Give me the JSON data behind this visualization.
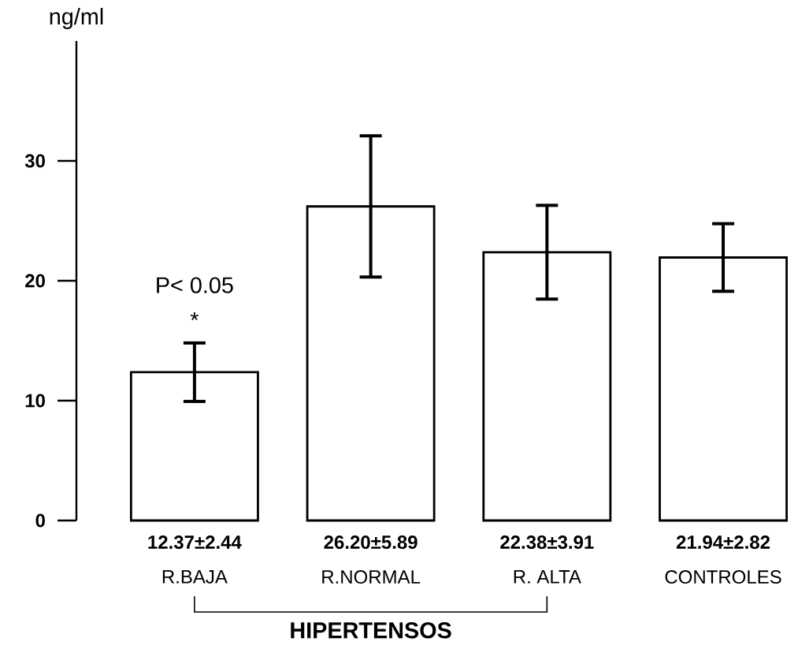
{
  "chart_data": {
    "type": "bar",
    "ylabel": "ng/ml",
    "categories": [
      "R.BAJA",
      "R.NORMAL",
      "R. ALTA",
      "CONTROLES"
    ],
    "values": [
      12.37,
      26.2,
      22.38,
      21.94
    ],
    "errors": [
      2.44,
      5.89,
      3.91,
      2.82
    ],
    "value_labels": [
      "12.37±2.44",
      "26.20±5.89",
      "22.38±3.91",
      "21.94±2.82"
    ],
    "colors": [
      "#ffffff",
      "#ffffff",
      "#ffffff",
      "#ffffff"
    ],
    "ylim": [
      0,
      40
    ],
    "yticks": [
      0,
      10,
      20,
      30
    ],
    "annotations": [
      "P< 0.05",
      "*",
      "HIPERTENSOS"
    ],
    "grid": false
  }
}
